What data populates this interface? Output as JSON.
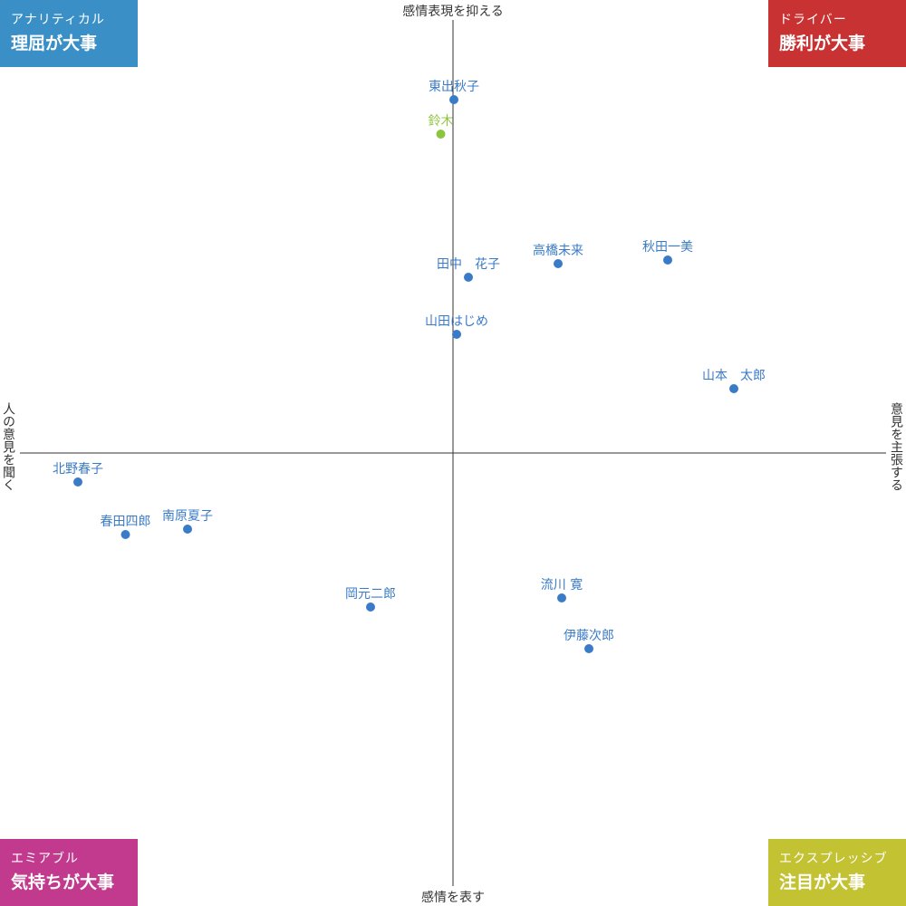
{
  "corners": {
    "top_left": {
      "sub": "アナリティカル",
      "main": "理屈が大事",
      "color": "#3a8fc7"
    },
    "top_right": {
      "sub": "ドライバー",
      "main": "勝利が大事",
      "color": "#c93232"
    },
    "bottom_left": {
      "sub": "エミアブル",
      "main": "気持ちが大事",
      "color": "#c23a8e"
    },
    "bottom_right": {
      "sub": "エクスプレッシブ",
      "main": "注目が大事",
      "color": "#c2c232"
    }
  },
  "axes": {
    "top": "感情表現を抑える",
    "bottom": "感情を表す",
    "left": "人の意見を聞く",
    "right": "意見を主張する"
  },
  "chart_data": {
    "type": "scatter",
    "xlim": [
      -100,
      100
    ],
    "ylim": [
      -100,
      100
    ],
    "grid": false,
    "colors": {
      "default": "#3a7bc8",
      "highlight": "#8cc63f",
      "axis": "#333333"
    },
    "points": [
      {
        "name": "東出秋子",
        "x": 0.2,
        "y": 78,
        "highlight": false
      },
      {
        "name": "鈴木",
        "x": -2.7,
        "y": 70.4,
        "highlight": true
      },
      {
        "name": "田中　花子",
        "x": 3.4,
        "y": 38.8,
        "highlight": false
      },
      {
        "name": "高橋未来",
        "x": 23.2,
        "y": 41.8,
        "highlight": false
      },
      {
        "name": "秋田一美",
        "x": 47.4,
        "y": 42.6,
        "highlight": false
      },
      {
        "name": "山田はじめ",
        "x": 0.8,
        "y": 26.2,
        "highlight": false
      },
      {
        "name": "山本　太郎",
        "x": 62.0,
        "y": 14.2,
        "highlight": false
      },
      {
        "name": "北野春子",
        "x": -82.8,
        "y": -6.4,
        "highlight": false
      },
      {
        "name": "春田四郎",
        "x": -72.3,
        "y": -18.0,
        "highlight": false
      },
      {
        "name": "南原夏子",
        "x": -58.6,
        "y": -16.8,
        "highlight": false
      },
      {
        "name": "岡元二郎",
        "x": -18.2,
        "y": -34.0,
        "highlight": false
      },
      {
        "name": "流川 寛",
        "x": 24.0,
        "y": -32.0,
        "highlight": false
      },
      {
        "name": "伊藤次郎",
        "x": 30.0,
        "y": -43.2,
        "highlight": false
      }
    ]
  }
}
